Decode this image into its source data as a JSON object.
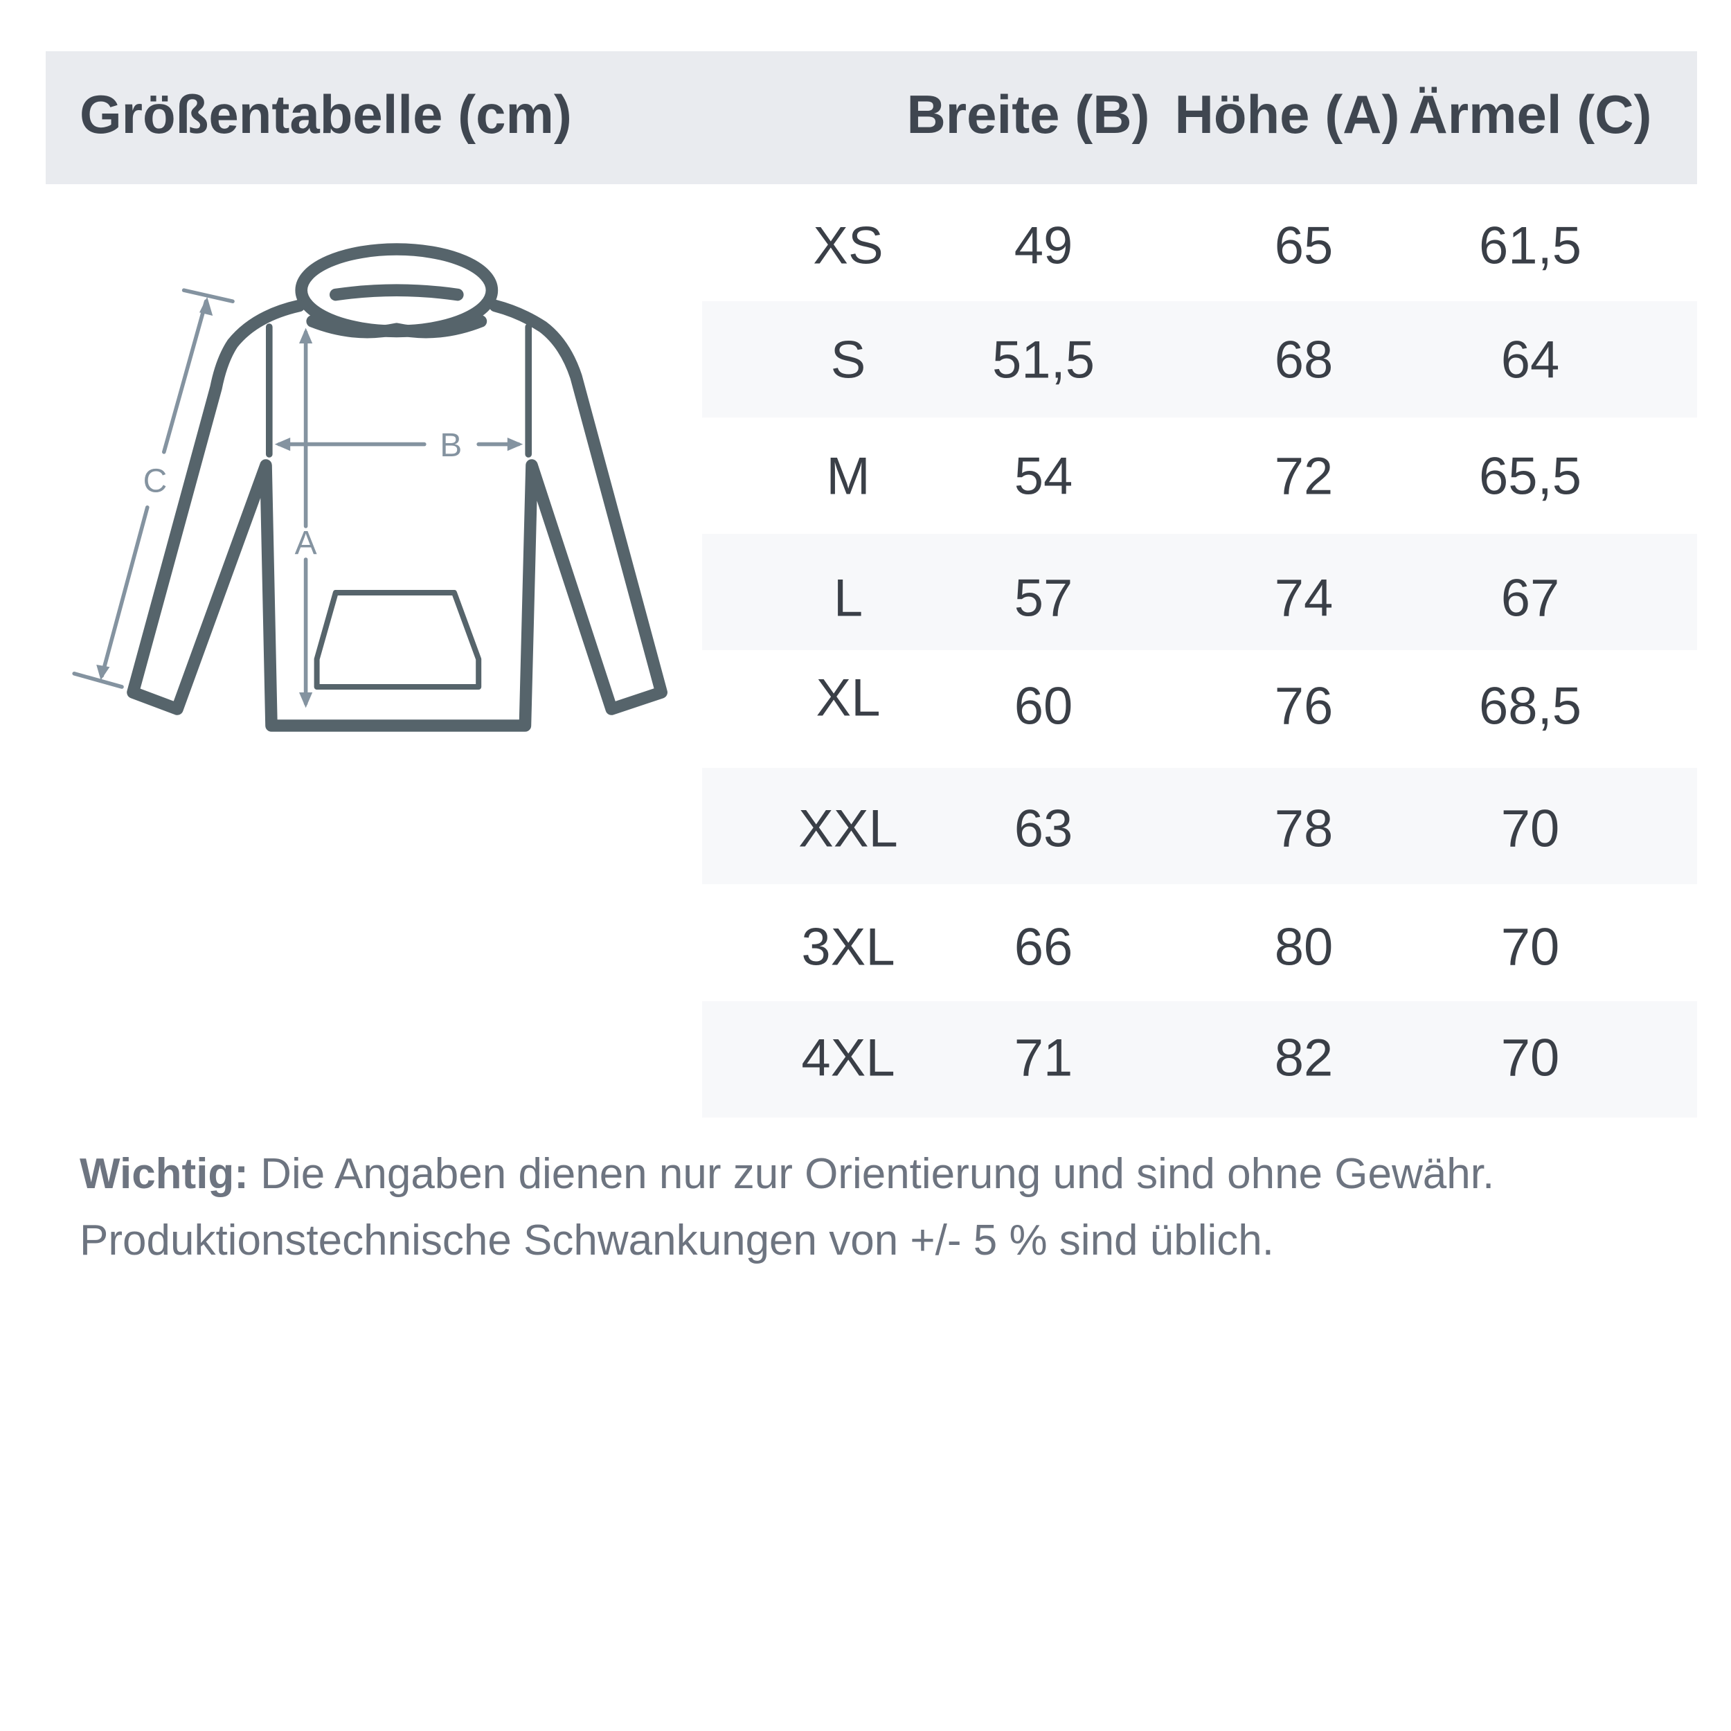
{
  "header": {
    "title": "Größentabelle (cm)",
    "columns": [
      "Breite (B)",
      "Höhe (A)",
      "Ärmel (C)"
    ]
  },
  "diagram": {
    "labels": {
      "width": "B",
      "height": "A",
      "sleeve": "C"
    },
    "colors": {
      "outline": "#56646b",
      "arrows": "#8493a0"
    }
  },
  "table": {
    "rows": [
      {
        "size": "XS",
        "breite": "49",
        "hoehe": "65",
        "aermel": "61,5"
      },
      {
        "size": "S",
        "breite": "51,5",
        "hoehe": "68",
        "aermel": "64"
      },
      {
        "size": "M",
        "breite": "54",
        "hoehe": "72",
        "aermel": "65,5"
      },
      {
        "size": "L",
        "breite": "57",
        "hoehe": "74",
        "aermel": "67"
      },
      {
        "size": "XL",
        "breite": "60",
        "hoehe": "76",
        "aermel": "68,5"
      },
      {
        "size": "XXL",
        "breite": "63",
        "hoehe": "78",
        "aermel": "70"
      },
      {
        "size": "3XL",
        "breite": "66",
        "hoehe": "80",
        "aermel": "70"
      },
      {
        "size": "4XL",
        "breite": "71",
        "hoehe": "82",
        "aermel": "70"
      }
    ]
  },
  "note": {
    "label": "Wichtig:",
    "line1": " Die Angaben dienen nur zur Orientierung und sind ohne Gewähr.",
    "line2": "Produktionstechnische Schwankungen von +/- 5 % sind üblich."
  }
}
